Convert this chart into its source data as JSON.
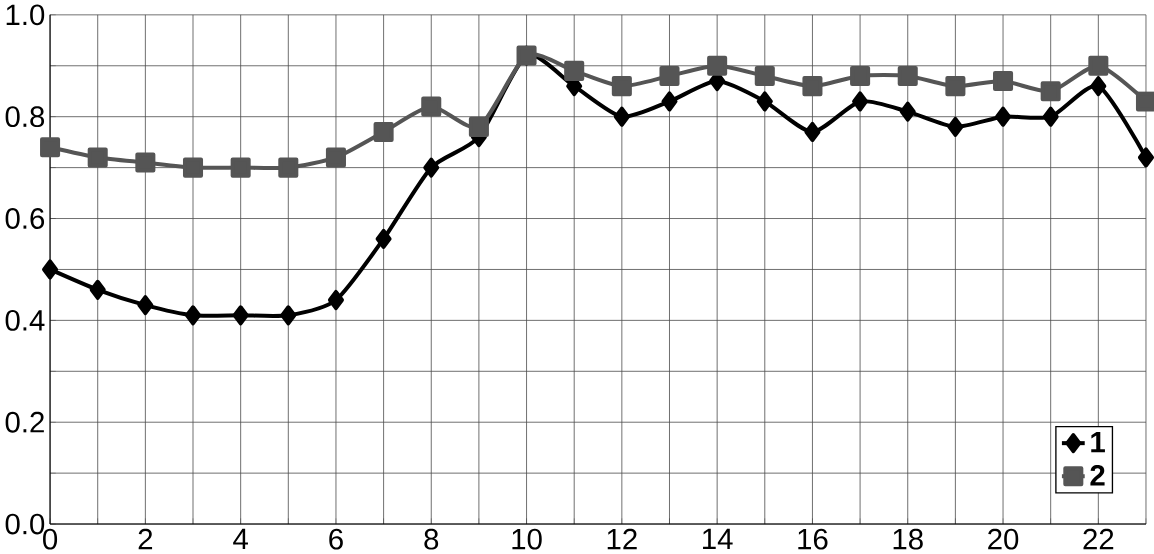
{
  "chart_data": {
    "type": "line",
    "x": [
      0,
      1,
      2,
      3,
      4,
      5,
      6,
      7,
      8,
      9,
      10,
      11,
      12,
      13,
      14,
      15,
      16,
      17,
      18,
      19,
      20,
      21,
      22,
      23
    ],
    "series": [
      {
        "name": "1",
        "color": "#000000",
        "marker": "diamond",
        "values": [
          0.5,
          0.46,
          0.43,
          0.41,
          0.41,
          0.41,
          0.44,
          0.56,
          0.7,
          0.76,
          0.92,
          0.86,
          0.8,
          0.83,
          0.87,
          0.83,
          0.77,
          0.83,
          0.81,
          0.78,
          0.8,
          0.8,
          0.86,
          0.72
        ]
      },
      {
        "name": "2",
        "color": "#555555",
        "marker": "square",
        "values": [
          0.74,
          0.72,
          0.71,
          0.7,
          0.7,
          0.7,
          0.72,
          0.77,
          0.82,
          0.78,
          0.92,
          0.89,
          0.86,
          0.88,
          0.9,
          0.88,
          0.86,
          0.88,
          0.88,
          0.86,
          0.87,
          0.85,
          0.9,
          0.83
        ]
      }
    ],
    "xlim": [
      0,
      23
    ],
    "ylim": [
      0,
      1
    ],
    "xticks": [
      {
        "value": 0,
        "label": "0"
      },
      {
        "value": 1,
        "label": null
      },
      {
        "value": 2,
        "label": "2"
      },
      {
        "value": 3,
        "label": null
      },
      {
        "value": 4,
        "label": "4"
      },
      {
        "value": 5,
        "label": null
      },
      {
        "value": 6,
        "label": "6"
      },
      {
        "value": 7,
        "label": null
      },
      {
        "value": 8,
        "label": "8"
      },
      {
        "value": 9,
        "label": null
      },
      {
        "value": 10,
        "label": "10"
      },
      {
        "value": 11,
        "label": null
      },
      {
        "value": 12,
        "label": "12"
      },
      {
        "value": 13,
        "label": null
      },
      {
        "value": 14,
        "label": "14"
      },
      {
        "value": 15,
        "label": null
      },
      {
        "value": 16,
        "label": "16"
      },
      {
        "value": 17,
        "label": null
      },
      {
        "value": 18,
        "label": "18"
      },
      {
        "value": 19,
        "label": null
      },
      {
        "value": 20,
        "label": "20"
      },
      {
        "value": 21,
        "label": null
      },
      {
        "value": 22,
        "label": "22"
      },
      {
        "value": 23,
        "label": null
      }
    ],
    "yticks": [
      {
        "value": 0,
        "label": "0.0"
      },
      {
        "value": 0.1,
        "label": null
      },
      {
        "value": 0.2,
        "label": "0.2"
      },
      {
        "value": 0.3,
        "label": null
      },
      {
        "value": 0.4,
        "label": "0.4"
      },
      {
        "value": 0.5,
        "label": null
      },
      {
        "value": 0.6,
        "label": "0.6"
      },
      {
        "value": 0.7,
        "label": null
      },
      {
        "value": 0.8,
        "label": "0.8"
      },
      {
        "value": 0.9,
        "label": null
      },
      {
        "value": 1.0,
        "label": "1.0"
      }
    ],
    "grid": true,
    "legend": "bottom right",
    "line_style": "solid"
  }
}
